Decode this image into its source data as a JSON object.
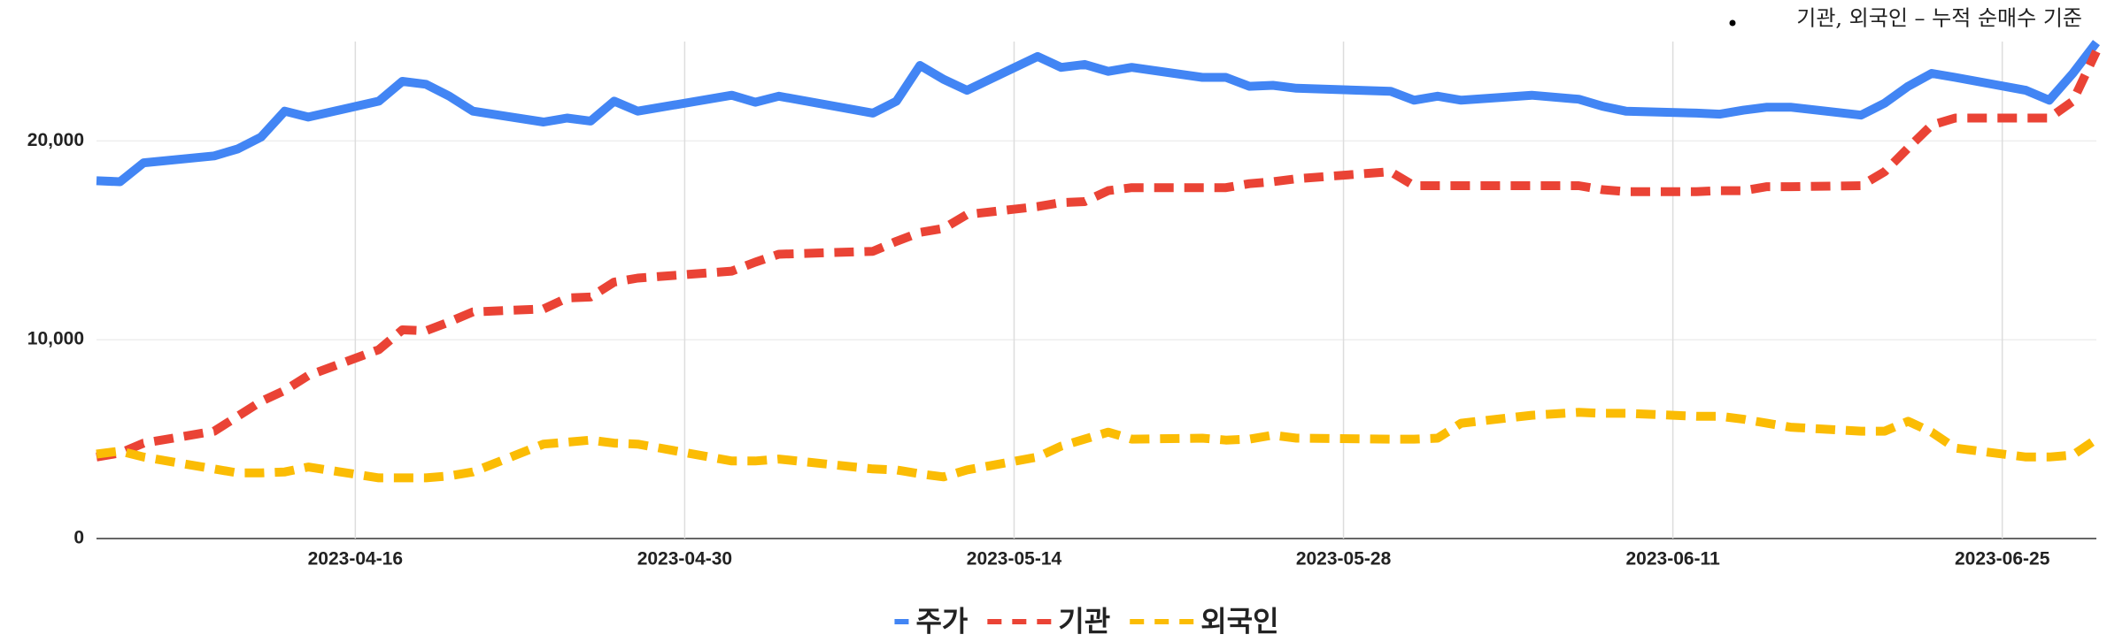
{
  "chart_data": {
    "type": "line",
    "annotation": "기관, 외국인 – 누적 순매수 기준",
    "x": [
      "2023-04-05",
      "2023-04-06",
      "2023-04-07",
      "2023-04-10",
      "2023-04-11",
      "2023-04-12",
      "2023-04-13",
      "2023-04-14",
      "2023-04-17",
      "2023-04-18",
      "2023-04-19",
      "2023-04-20",
      "2023-04-21",
      "2023-04-24",
      "2023-04-25",
      "2023-04-26",
      "2023-04-27",
      "2023-04-28",
      "2023-05-02",
      "2023-05-03",
      "2023-05-04",
      "2023-05-08",
      "2023-05-09",
      "2023-05-10",
      "2023-05-11",
      "2023-05-12",
      "2023-05-15",
      "2023-05-16",
      "2023-05-17",
      "2023-05-18",
      "2023-05-19",
      "2023-05-22",
      "2023-05-23",
      "2023-05-24",
      "2023-05-25",
      "2023-05-26",
      "2023-05-30",
      "2023-05-31",
      "2023-06-01",
      "2023-06-02",
      "2023-06-05",
      "2023-06-07",
      "2023-06-08",
      "2023-06-09",
      "2023-06-12",
      "2023-06-13",
      "2023-06-14",
      "2023-06-15",
      "2023-06-16",
      "2023-06-19",
      "2023-06-20",
      "2023-06-21",
      "2023-06-22",
      "2023-06-23",
      "2023-06-26",
      "2023-06-27",
      "2023-06-28",
      "2023-06-29"
    ],
    "series": [
      {
        "name": "주가",
        "color": "#4285f4",
        "dashed": false,
        "values": [
          18000,
          17950,
          18900,
          19250,
          19600,
          20200,
          21500,
          21200,
          22000,
          23000,
          22850,
          22250,
          21500,
          20950,
          21150,
          21000,
          22000,
          21500,
          22300,
          21950,
          22250,
          21400,
          22000,
          23800,
          23100,
          22550,
          24250,
          23700,
          23850,
          23500,
          23700,
          23200,
          23200,
          22750,
          22800,
          22650,
          22500,
          22050,
          22250,
          22050,
          22300,
          22100,
          21750,
          21500,
          21400,
          21350,
          21550,
          21700,
          21700,
          21300,
          21900,
          22750,
          23400,
          23200,
          22550,
          22050,
          23400,
          24950
        ]
      },
      {
        "name": "기관",
        "color": "#ea4335",
        "dashed": true,
        "values": [
          4100,
          4300,
          4800,
          5400,
          6150,
          6900,
          7450,
          8200,
          9500,
          10500,
          10450,
          10900,
          11400,
          11550,
          12100,
          12150,
          12900,
          13100,
          13450,
          13900,
          14300,
          14450,
          14950,
          15400,
          15600,
          16300,
          16700,
          16900,
          16950,
          17500,
          17650,
          17650,
          17650,
          17850,
          17950,
          18100,
          18450,
          17750,
          17750,
          17750,
          17750,
          17750,
          17550,
          17450,
          17450,
          17500,
          17500,
          17700,
          17700,
          17750,
          18450,
          19650,
          20800,
          21150,
          21150,
          21150,
          22000,
          24500
        ]
      },
      {
        "name": "외국인",
        "color": "#fbbc04",
        "dashed": true,
        "values": [
          4250,
          4400,
          4100,
          3500,
          3300,
          3300,
          3350,
          3600,
          3050,
          3050,
          3050,
          3150,
          3350,
          4750,
          4850,
          4950,
          4800,
          4750,
          3900,
          3900,
          4000,
          3500,
          3450,
          3250,
          3100,
          3450,
          4100,
          4650,
          5000,
          5350,
          5000,
          5050,
          4950,
          5000,
          5200,
          5050,
          5000,
          5000,
          5050,
          5800,
          6200,
          6350,
          6300,
          6300,
          6150,
          6150,
          6000,
          5800,
          5600,
          5400,
          5400,
          5900,
          5350,
          4550,
          4100,
          4100,
          4200,
          5000
        ]
      }
    ],
    "xlim": [
      "2023-04-05",
      "2023-06-29"
    ],
    "xticks": [
      "2023-04-16",
      "2023-04-30",
      "2023-05-14",
      "2023-05-28",
      "2023-06-11",
      "2023-06-25"
    ],
    "ylim": [
      0,
      25000
    ],
    "yticks": [
      0,
      {
        "value": 10000,
        "label": "10,000"
      },
      {
        "value": 20000,
        "label": "20,000"
      }
    ],
    "grid": true,
    "legend": "bottom"
  }
}
